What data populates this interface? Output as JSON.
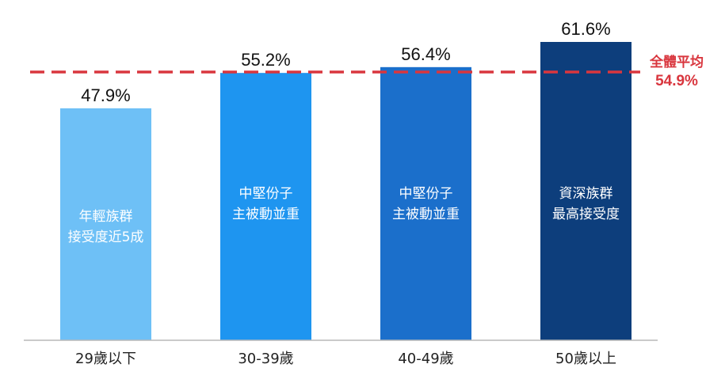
{
  "chart_data": {
    "type": "bar",
    "categories": [
      "29歲以下",
      "30-39歲",
      "40-49歲",
      "50歲以上"
    ],
    "values": [
      47.9,
      55.2,
      56.4,
      61.6
    ],
    "value_labels": [
      "47.9%",
      "55.2%",
      "56.4%",
      "61.6%"
    ],
    "bar_annotations": [
      [
        "年輕族群",
        "接受度近5成"
      ],
      [
        "中堅份子",
        "主被動並重"
      ],
      [
        "中堅份子",
        "主被動並重"
      ],
      [
        "資深族群",
        "最高接受度"
      ]
    ],
    "bar_colors": [
      "#6ec0f6",
      "#1e95f0",
      "#1b6fcb",
      "#0d3e7c"
    ],
    "reference_line": {
      "label": "全體平均",
      "value": 54.9,
      "value_label": "54.9%",
      "color": "#d9363e",
      "style": "dashed"
    },
    "ylim": [
      0,
      65
    ],
    "grid": false,
    "axis_color": "#b8b8b8"
  }
}
